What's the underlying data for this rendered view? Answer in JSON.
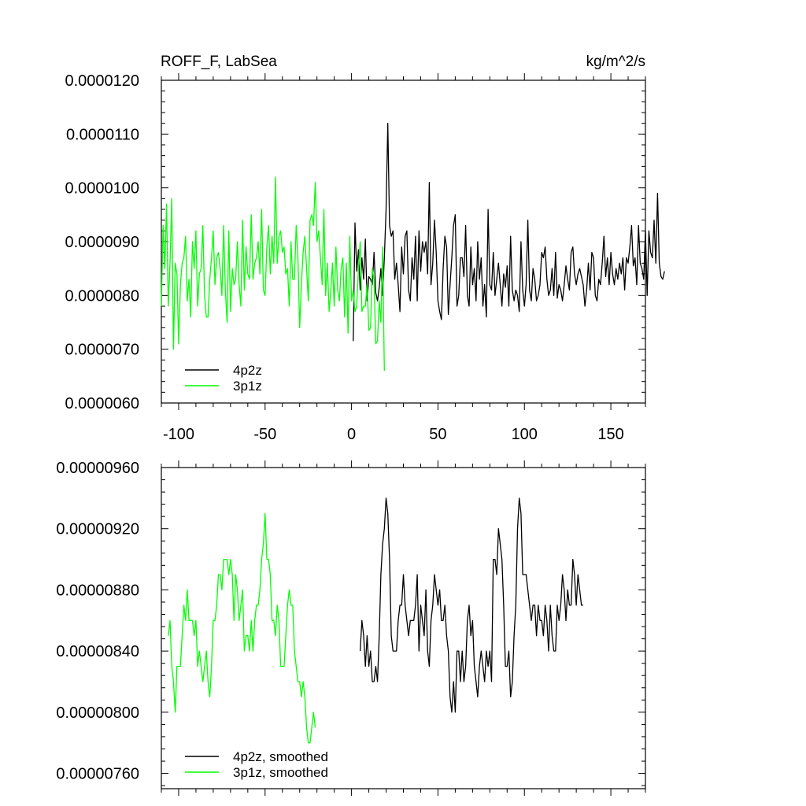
{
  "chart_data": [
    {
      "type": "line",
      "title": "ROFF_F, LabSea",
      "units": "kg/m^2/s",
      "xlim": [
        -110,
        170
      ],
      "ylim": [
        6e-06,
        1.2e-05
      ],
      "xticks": [
        -100,
        -50,
        0,
        50,
        100,
        150
      ],
      "xtick_labels": [
        "-100",
        "-50",
        "0",
        "50",
        "100",
        "150"
      ],
      "yticks": [
        6e-06,
        7e-06,
        8e-06,
        9e-06,
        1e-05,
        1.1e-05,
        1.2e-05
      ],
      "ytick_labels": [
        "0.0000060",
        "0.0000070",
        "0.0000080",
        "0.0000090",
        "0.0000100",
        "0.0000110",
        "0.0000120"
      ],
      "legend_position": "bottom-left",
      "series": [
        {
          "name": "4p2z",
          "color": "#000000",
          "x_start": 1,
          "x_step": 1,
          "values": [
            7.15e-06,
            9.35e-06,
            8.45e-06,
            8.85e-06,
            8.1e-06,
            8.7e-06,
            8.3e-06,
            9.05e-06,
            7.9e-06,
            8.35e-06,
            8.3e-06,
            8.2e-06,
            8.8e-06,
            8.05e-06,
            7.9e-06,
            8.15e-06,
            8.5e-06,
            8e-06,
            8.7e-06,
            9.6e-06,
            1.12e-05,
            9.3e-06,
            9.1e-06,
            9.2e-06,
            8.3e-06,
            8.6e-06,
            8.2e-06,
            7.7e-06,
            8.9e-06,
            8.4e-06,
            9.1e-06,
            9.2e-06,
            8.1e-06,
            7.9e-06,
            8.7e-06,
            8.3e-06,
            9.1e-06,
            7.9e-06,
            9.2e-06,
            8.45e-06,
            9e-06,
            8.8e-06,
            9e-06,
            8.4e-06,
            1.01e-05,
            8.2e-06,
            8.6e-06,
            9.4e-06,
            8.8e-06,
            7.9e-06,
            7.7e-06,
            7.55e-06,
            8.5e-06,
            9.1e-06,
            8.9e-06,
            7.65e-06,
            8.2e-06,
            8.7e-06,
            9.3e-06,
            9.5e-06,
            7.8e-06,
            8e-06,
            8.7e-06,
            8.7e-06,
            8.35e-06,
            9.3e-06,
            8e-06,
            7.8e-06,
            8.9e-06,
            8.2e-06,
            8.5e-06,
            7.9e-06,
            9e-06,
            8.3e-06,
            8.7e-06,
            7.8e-06,
            8.2e-06,
            7.6e-06,
            9.6e-06,
            8.2e-06,
            8.1e-06,
            8.8e-06,
            8e-06,
            8.3e-06,
            8.6e-06,
            8.2e-06,
            7.8e-06,
            8.4e-06,
            8.15e-06,
            8.55e-06,
            7.8e-06,
            9.1e-06,
            8.1e-06,
            7.9e-06,
            8.1e-06,
            8e-06,
            7.7e-06,
            9e-06,
            8.1e-06,
            7.8e-06,
            8.2e-06,
            9.4e-06,
            8.1e-06,
            7.9e-06,
            8.5e-06,
            8.3e-06,
            7.9e-06,
            8e-06,
            8.2e-06,
            8.8e-06,
            8.7e-06,
            8.9e-06,
            8.3e-06,
            8e-06,
            8.1e-06,
            8.5e-06,
            8e-06,
            8.8e-06,
            7.95e-06,
            8.2e-06,
            8.1e-06,
            7.9e-06,
            8.2e-06,
            8.55e-06,
            8.3e-06,
            8.1e-06,
            8.8e-06,
            8.9e-06,
            8.4e-06,
            8.2e-06,
            8.4e-06,
            8.5e-06,
            8.35e-06,
            8.2e-06,
            7.8e-06,
            8.1e-06,
            8.6e-06,
            8.1e-06,
            8.8e-06,
            8.7e-06,
            8e-06,
            7.9e-06,
            8.3e-06,
            8.2e-06,
            8.6e-06,
            9.1e-06,
            8.35e-06,
            8.7e-06,
            8.2e-06,
            8.8e-06,
            8.4e-06,
            8.2e-06,
            8.5e-06,
            8.3e-06,
            8.6e-06,
            8.4e-06,
            8.7e-06,
            8.1e-06,
            8.7e-06,
            8.6e-06,
            8.9e-06,
            9.3e-06,
            8.55e-06,
            8.7e-06,
            8.2e-06,
            9.3e-06,
            8.6e-06,
            8.5e-06,
            8.3e-06,
            9.2e-06,
            8e-06,
            9.2e-06,
            8.8e-06,
            8.7e-06,
            9.4e-06,
            8.6e-06,
            9.9e-06,
            8.6e-06,
            8.35e-06,
            8.3e-06,
            8.45e-06
          ]
        },
        {
          "name": "3p1z",
          "color": "#00ff00",
          "x_start": -110,
          "x_step": 1,
          "values": [
            7.8e-06,
            9.3e-06,
            8.5e-06,
            9.7e-06,
            7.8e-06,
            8.6e-06,
            9.8e-06,
            7e-06,
            8.6e-06,
            8.4e-06,
            7.1e-06,
            8.2e-06,
            8.6e-06,
            8.7e-06,
            9.1e-06,
            7.9e-06,
            8.3e-06,
            7.6e-06,
            9e-06,
            8.5e-06,
            9.2e-06,
            7.8e-06,
            8.4e-06,
            8.5e-06,
            9.3e-06,
            8e-06,
            7.6e-06,
            7.6e-06,
            8.3e-06,
            8.7e-06,
            9.2e-06,
            8.2e-06,
            8.7e-06,
            8.8e-06,
            8.5e-06,
            8e-06,
            9.3e-06,
            8.1e-06,
            7.5e-06,
            9.2e-06,
            7.7e-06,
            8.5e-06,
            8.2e-06,
            8.3e-06,
            9e-06,
            8.2e-06,
            7.8e-06,
            9.4e-06,
            8.1e-06,
            8.9e-06,
            8.4e-06,
            8.3e-06,
            9.5e-06,
            8.3e-06,
            8.6e-06,
            8.7e-06,
            9e-06,
            8.4e-06,
            9.6e-06,
            8.1e-06,
            8e-06,
            8.9e-06,
            9.3e-06,
            8.4e-06,
            9.1e-06,
            8.6e-06,
            1.02e-05,
            8.6e-06,
            9.1e-06,
            9.2e-06,
            8.8e-06,
            8.9e-06,
            8.4e-06,
            8.5e-06,
            7.8e-06,
            9e-06,
            8.3e-06,
            8.3e-06,
            9.3e-06,
            8.7e-06,
            7.4e-06,
            8.2e-06,
            8.8e-06,
            9.1e-06,
            8.5e-06,
            7.9e-06,
            9.4e-06,
            9.5e-06,
            9.3e-06,
            1.01e-05,
            9e-06,
            9.2e-06,
            8.7e-06,
            8.2e-06,
            9.6e-06,
            8e-06,
            8.6e-06,
            7.7e-06,
            8.1e-06,
            8.6e-06,
            7.8e-06,
            8.9e-06,
            8.1e-06,
            7.9e-06,
            8.5e-06,
            8.7e-06,
            7.6e-06,
            8.6e-06,
            7.3e-06,
            9.1e-06,
            7.9e-06,
            8.1e-06,
            7.7e-06,
            7.8e-06,
            8.5e-06,
            9e-06,
            7.7e-06,
            7.8e-06,
            7.8e-06,
            8.2e-06,
            7.35e-06,
            7.4e-06,
            8.5e-06,
            8.3e-06,
            7.1e-06,
            7.15e-06,
            7.9e-06,
            7.5e-06,
            8.9e-06,
            6.6e-06
          ]
        }
      ]
    },
    {
      "type": "line",
      "title": "",
      "xlim": [
        -110,
        170
      ],
      "ylim": [
        7.5e-06,
        9.6e-06
      ],
      "xticks": [
        -100,
        -50,
        0,
        50,
        100,
        150
      ],
      "yticks": [
        7.6e-06,
        8e-06,
        8.4e-06,
        8.8e-06,
        9.2e-06,
        9.6e-06
      ],
      "ytick_labels": [
        "0.00000760",
        "0.00000800",
        "0.00000840",
        "0.00000880",
        "0.00000920",
        "0.00000960"
      ],
      "legend_position": "bottom-left",
      "series": [
        {
          "name": "4p2z, smoothed",
          "color": "#000000",
          "x_start": 5,
          "x_step": 1,
          "values": [
            8.4e-06,
            8.6e-06,
            8.5e-06,
            8.3e-06,
            8.5e-06,
            8.3e-06,
            8.4e-06,
            8.2e-06,
            8.2e-06,
            8.3e-06,
            8.2e-06,
            8.5e-06,
            8.9e-06,
            9.1e-06,
            9.2e-06,
            9.4e-06,
            9.3e-06,
            9e-06,
            8.5e-06,
            8.4e-06,
            8.4e-06,
            8.4e-06,
            8.6e-06,
            8.7e-06,
            8.7e-06,
            8.9e-06,
            8.7e-06,
            8.6e-06,
            8.5e-06,
            8.6e-06,
            8.6e-06,
            8.6e-06,
            8.7e-06,
            8.9e-06,
            8.4e-06,
            8.7e-06,
            8.6e-06,
            8.5e-06,
            8.8e-06,
            8.4e-06,
            8.3e-06,
            8.6e-06,
            8.7e-06,
            8.9e-06,
            8.8e-06,
            8.7e-06,
            8.8e-06,
            8.6e-06,
            8.6e-06,
            8.7e-06,
            8.5e-06,
            8.4e-06,
            8.1e-06,
            8e-06,
            8.2e-06,
            8e-06,
            8.4e-06,
            8.4e-06,
            8.2e-06,
            8.4e-06,
            8.2e-06,
            8.3e-06,
            8.6e-06,
            8.7e-06,
            8.5e-06,
            8.6e-06,
            8.3e-06,
            8.2e-06,
            8.1e-06,
            8.3e-06,
            8.4e-06,
            8.3e-06,
            8.2e-06,
            8.4e-06,
            8.3e-06,
            8.4e-06,
            8.2e-06,
            9e-06,
            9e-06,
            8.9e-06,
            9.2e-06,
            9.1e-06,
            9e-06,
            8.7e-06,
            8.3e-06,
            8.3e-06,
            8.4e-06,
            8.1e-06,
            8.2e-06,
            8.5e-06,
            8.7e-06,
            9.2e-06,
            9.4e-06,
            9.3e-06,
            8.9e-06,
            8.9e-06,
            8.9e-06,
            8.8e-06,
            8.7e-06,
            8.6e-06,
            8.7e-06,
            8.7e-06,
            8.5e-06,
            8.7e-06,
            8.6e-06,
            8.6e-06,
            8.5e-06,
            8.7e-06,
            8.6e-06,
            8.4e-06,
            8.7e-06,
            8.5e-06,
            8.4e-06,
            8.4e-06,
            8.7e-06,
            8.6e-06,
            8.7e-06,
            8.9e-06,
            8.8e-06,
            8.6e-06,
            8.8e-06,
            8.7e-06,
            8.7e-06,
            9e-06,
            8.9e-06,
            8.7e-06,
            8.9e-06,
            8.8e-06,
            8.7e-06,
            8.7e-06
          ]
        },
        {
          "name": "3p1z, smoothed",
          "color": "#00ff00",
          "x_start": -106,
          "x_step": 1,
          "values": [
            8.5e-06,
            8.6e-06,
            8.3e-06,
            8.2e-06,
            8e-06,
            8.3e-06,
            8.3e-06,
            8.3e-06,
            8.5e-06,
            8.7e-06,
            8.6e-06,
            8.8e-06,
            8.6e-06,
            8.6e-06,
            8.6e-06,
            8.5e-06,
            8.6e-06,
            8.3e-06,
            8.4e-06,
            8.3e-06,
            8.2e-06,
            8.3e-06,
            8.4e-06,
            8.2e-06,
            8.1e-06,
            8.3e-06,
            8.6e-06,
            8.6e-06,
            8.7e-06,
            8.9e-06,
            8.9e-06,
            8.8e-06,
            9e-06,
            9e-06,
            9e-06,
            8.9e-06,
            9e-06,
            8.9e-06,
            8.6e-06,
            8.9e-06,
            8.8e-06,
            8.6e-06,
            8.7e-06,
            8.8e-06,
            8.4e-06,
            8.5e-06,
            8.5e-06,
            8.4e-06,
            8.6e-06,
            8.4e-06,
            8.6e-06,
            8.7e-06,
            8.7e-06,
            8.8e-06,
            9e-06,
            9.1e-06,
            9.3e-06,
            9e-06,
            9e-06,
            8.9e-06,
            8.6e-06,
            8.6e-06,
            8.5e-06,
            8.7e-06,
            8.6e-06,
            8.3e-06,
            8.3e-06,
            8.3e-06,
            8.5e-06,
            8.7e-06,
            8.8e-06,
            8.7e-06,
            8.7e-06,
            8.4e-06,
            8.3e-06,
            8.2e-06,
            8.2e-06,
            8.1e-06,
            8.2e-06,
            8.1e-06,
            7.9e-06,
            7.8e-06,
            7.8e-06,
            7.9e-06,
            8e-06,
            7.9e-06
          ]
        }
      ]
    }
  ]
}
